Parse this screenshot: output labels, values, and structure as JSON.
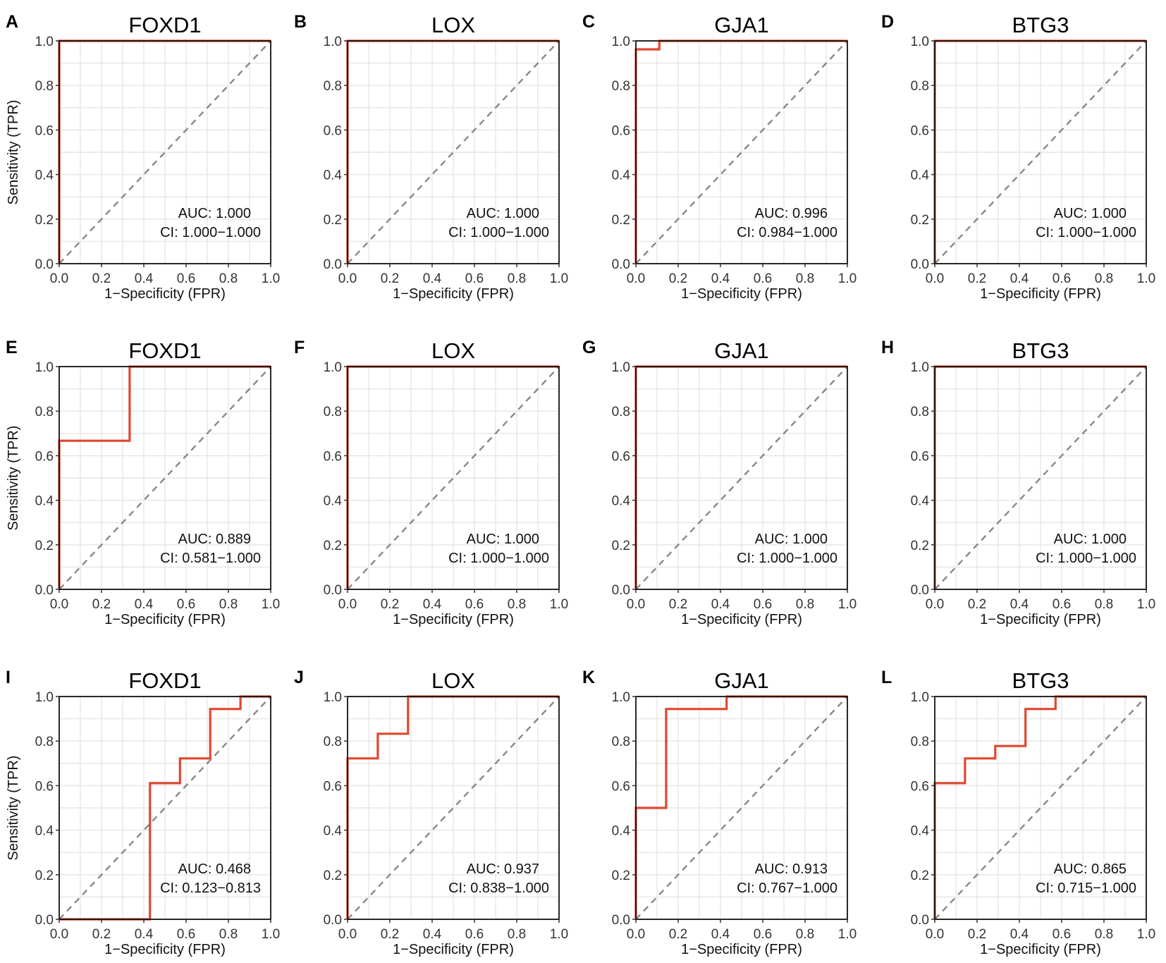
{
  "figure": {
    "rows": 3,
    "cols": 4
  },
  "colors": {
    "curve": "#e0472f",
    "diagonal": "#888888",
    "grid": "#e6e6e6",
    "frame": "#111111"
  },
  "chart_data": [
    {
      "type": "line",
      "letter": "A",
      "title": "FOXD1",
      "xlabel": "1−Specificity (FPR)",
      "ylabel": "Sensitivity (TPR)",
      "xlim": [
        0,
        1
      ],
      "ylim": [
        0,
        1
      ],
      "ticks": [
        "0.0",
        "0.2",
        "0.4",
        "0.6",
        "0.8",
        "1.0"
      ],
      "auc": "AUC: 1.000",
      "ci": "CI: 1.000−1.000",
      "series": [
        {
          "name": "ROC",
          "x": [
            0,
            0,
            1
          ],
          "y": [
            0,
            1,
            1
          ]
        }
      ]
    },
    {
      "type": "line",
      "letter": "B",
      "title": "LOX",
      "xlabel": "1−Specificity (FPR)",
      "ylabel": "",
      "xlim": [
        0,
        1
      ],
      "ylim": [
        0,
        1
      ],
      "ticks": [
        "0.0",
        "0.2",
        "0.4",
        "0.6",
        "0.8",
        "1.0"
      ],
      "auc": "AUC: 1.000",
      "ci": "CI: 1.000−1.000",
      "series": [
        {
          "name": "ROC",
          "x": [
            0,
            0,
            1
          ],
          "y": [
            0,
            1,
            1
          ]
        }
      ]
    },
    {
      "type": "line",
      "letter": "C",
      "title": "GJA1",
      "xlabel": "1−Specificity (FPR)",
      "ylabel": "",
      "xlim": [
        0,
        1
      ],
      "ylim": [
        0,
        1
      ],
      "ticks": [
        "0.0",
        "0.2",
        "0.4",
        "0.6",
        "0.8",
        "1.0"
      ],
      "auc": "AUC: 0.996",
      "ci": "CI: 0.984−1.000",
      "series": [
        {
          "name": "ROC",
          "x": [
            0,
            0,
            0.111,
            0.111,
            1
          ],
          "y": [
            0,
            0.962,
            0.962,
            1,
            1
          ]
        }
      ]
    },
    {
      "type": "line",
      "letter": "D",
      "title": "BTG3",
      "xlabel": "1−Specificity (FPR)",
      "ylabel": "",
      "xlim": [
        0,
        1
      ],
      "ylim": [
        0,
        1
      ],
      "ticks": [
        "0.0",
        "0.2",
        "0.4",
        "0.6",
        "0.8",
        "1.0"
      ],
      "auc": "AUC: 1.000",
      "ci": "CI: 1.000−1.000",
      "series": [
        {
          "name": "ROC",
          "x": [
            0,
            0,
            1
          ],
          "y": [
            0,
            1,
            1
          ]
        }
      ]
    },
    {
      "type": "line",
      "letter": "E",
      "title": "FOXD1",
      "xlabel": "1−Specificity (FPR)",
      "ylabel": "Sensitivity (TPR)",
      "xlim": [
        0,
        1
      ],
      "ylim": [
        0,
        1
      ],
      "ticks": [
        "0.0",
        "0.2",
        "0.4",
        "0.6",
        "0.8",
        "1.0"
      ],
      "auc": "AUC: 0.889",
      "ci": "CI: 0.581−1.000",
      "series": [
        {
          "name": "ROC",
          "x": [
            0,
            0,
            0.333,
            0.333,
            1
          ],
          "y": [
            0,
            0.667,
            0.667,
            1,
            1
          ]
        }
      ]
    },
    {
      "type": "line",
      "letter": "F",
      "title": "LOX",
      "xlabel": "1−Specificity (FPR)",
      "ylabel": "",
      "xlim": [
        0,
        1
      ],
      "ylim": [
        0,
        1
      ],
      "ticks": [
        "0.0",
        "0.2",
        "0.4",
        "0.6",
        "0.8",
        "1.0"
      ],
      "auc": "AUC: 1.000",
      "ci": "CI: 1.000−1.000",
      "series": [
        {
          "name": "ROC",
          "x": [
            0,
            0,
            1
          ],
          "y": [
            0,
            1,
            1
          ]
        }
      ]
    },
    {
      "type": "line",
      "letter": "G",
      "title": "GJA1",
      "xlabel": "1−Specificity (FPR)",
      "ylabel": "",
      "xlim": [
        0,
        1
      ],
      "ylim": [
        0,
        1
      ],
      "ticks": [
        "0.0",
        "0.2",
        "0.4",
        "0.6",
        "0.8",
        "1.0"
      ],
      "auc": "AUC: 1.000",
      "ci": "CI: 1.000−1.000",
      "series": [
        {
          "name": "ROC",
          "x": [
            0,
            0,
            1
          ],
          "y": [
            0,
            1,
            1
          ]
        }
      ]
    },
    {
      "type": "line",
      "letter": "H",
      "title": "BTG3",
      "xlabel": "1−Specificity (FPR)",
      "ylabel": "",
      "xlim": [
        0,
        1
      ],
      "ylim": [
        0,
        1
      ],
      "ticks": [
        "0.0",
        "0.2",
        "0.4",
        "0.6",
        "0.8",
        "1.0"
      ],
      "auc": "AUC: 1.000",
      "ci": "CI: 1.000−1.000",
      "series": [
        {
          "name": "ROC",
          "x": [
            0,
            0,
            1
          ],
          "y": [
            0,
            1,
            1
          ]
        }
      ]
    },
    {
      "type": "line",
      "letter": "I",
      "title": "FOXD1",
      "xlabel": "1−Specificity (FPR)",
      "ylabel": "Sensitivity (TPR)",
      "xlim": [
        0,
        1
      ],
      "ylim": [
        0,
        1
      ],
      "ticks": [
        "0.0",
        "0.2",
        "0.4",
        "0.6",
        "0.8",
        "1.0"
      ],
      "auc": "AUC: 0.468",
      "ci": "CI: 0.123−0.813",
      "series": [
        {
          "name": "ROC",
          "x": [
            0,
            0.429,
            0.429,
            0.571,
            0.571,
            0.714,
            0.714,
            0.857,
            0.857,
            1
          ],
          "y": [
            0,
            0,
            0.611,
            0.611,
            0.722,
            0.722,
            0.944,
            0.944,
            1,
            1
          ]
        }
      ]
    },
    {
      "type": "line",
      "letter": "J",
      "title": "LOX",
      "xlabel": "1−Specificity (FPR)",
      "ylabel": "",
      "xlim": [
        0,
        1
      ],
      "ylim": [
        0,
        1
      ],
      "ticks": [
        "0.0",
        "0.2",
        "0.4",
        "0.6",
        "0.8",
        "1.0"
      ],
      "auc": "AUC: 0.937",
      "ci": "CI: 0.838−1.000",
      "series": [
        {
          "name": "ROC",
          "x": [
            0,
            0,
            0.143,
            0.143,
            0.286,
            0.286,
            1
          ],
          "y": [
            0,
            0.722,
            0.722,
            0.833,
            0.833,
            1,
            1
          ]
        }
      ]
    },
    {
      "type": "line",
      "letter": "K",
      "title": "GJA1",
      "xlabel": "1−Specificity (FPR)",
      "ylabel": "",
      "xlim": [
        0,
        1
      ],
      "ylim": [
        0,
        1
      ],
      "ticks": [
        "0.0",
        "0.2",
        "0.4",
        "0.6",
        "0.8",
        "1.0"
      ],
      "auc": "AUC: 0.913",
      "ci": "CI: 0.767−1.000",
      "series": [
        {
          "name": "ROC",
          "x": [
            0,
            0,
            0.143,
            0.143,
            0.429,
            0.429,
            1
          ],
          "y": [
            0,
            0.5,
            0.5,
            0.944,
            0.944,
            1,
            1
          ]
        }
      ]
    },
    {
      "type": "line",
      "letter": "L",
      "title": "BTG3",
      "xlabel": "1−Specificity (FPR)",
      "ylabel": "",
      "xlim": [
        0,
        1
      ],
      "ylim": [
        0,
        1
      ],
      "ticks": [
        "0.0",
        "0.2",
        "0.4",
        "0.6",
        "0.8",
        "1.0"
      ],
      "auc": "AUC: 0.865",
      "ci": "CI: 0.715−1.000",
      "series": [
        {
          "name": "ROC",
          "x": [
            0,
            0,
            0.143,
            0.143,
            0.286,
            0.286,
            0.429,
            0.429,
            0.571,
            0.571,
            1
          ],
          "y": [
            0,
            0.611,
            0.611,
            0.722,
            0.722,
            0.778,
            0.778,
            0.944,
            0.944,
            1,
            1
          ]
        }
      ]
    }
  ]
}
